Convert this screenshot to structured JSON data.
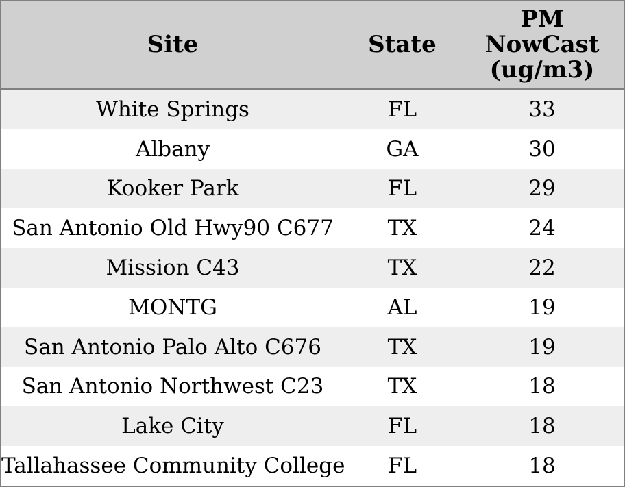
{
  "colors": {
    "border": "#808080",
    "header_bg": "#d0d0d0",
    "row_alt_bg": "#eeeeee",
    "row_bg": "#ffffff",
    "text": "#000000"
  },
  "table": {
    "columns": {
      "site_label": "Site",
      "state_label": "State",
      "pm_label": "PM\nNowCast\n(ug/m3)"
    },
    "rows": [
      {
        "site": "White Springs",
        "state": "FL",
        "value": "33"
      },
      {
        "site": "Albany",
        "state": "GA",
        "value": "30"
      },
      {
        "site": "Kooker Park",
        "state": "FL",
        "value": "29"
      },
      {
        "site": "San Antonio Old Hwy90 C677",
        "state": "TX",
        "value": "24"
      },
      {
        "site": "Mission C43",
        "state": "TX",
        "value": "22"
      },
      {
        "site": "MONTG",
        "state": "AL",
        "value": "19"
      },
      {
        "site": "San Antonio Palo Alto C676",
        "state": "TX",
        "value": "19"
      },
      {
        "site": "San Antonio Northwest C23",
        "state": "TX",
        "value": "18"
      },
      {
        "site": "Lake City",
        "state": "FL",
        "value": "18"
      },
      {
        "site": "Tallahassee Community College",
        "state": "FL",
        "value": "18"
      }
    ]
  },
  "chart_data": {
    "type": "table",
    "columns": [
      "Site",
      "State",
      "PM NowCast (ug/m3)"
    ],
    "rows": [
      [
        "White Springs",
        "FL",
        33
      ],
      [
        "Albany",
        "GA",
        30
      ],
      [
        "Kooker Park",
        "FL",
        29
      ],
      [
        "San Antonio Old Hwy90 C677",
        "TX",
        24
      ],
      [
        "Mission C43",
        "TX",
        22
      ],
      [
        "MONTG",
        "AL",
        19
      ],
      [
        "San Antonio Palo Alto C676",
        "TX",
        19
      ],
      [
        "San Antonio Northwest C23",
        "TX",
        18
      ],
      [
        "Lake City",
        "FL",
        18
      ],
      [
        "Tallahassee Community College",
        "FL",
        18
      ]
    ],
    "layout": {
      "header_row": true,
      "alternating_row_shading": true,
      "cell_alignment": "center",
      "gridlines": "outer-border-and-header-divider-only"
    }
  }
}
